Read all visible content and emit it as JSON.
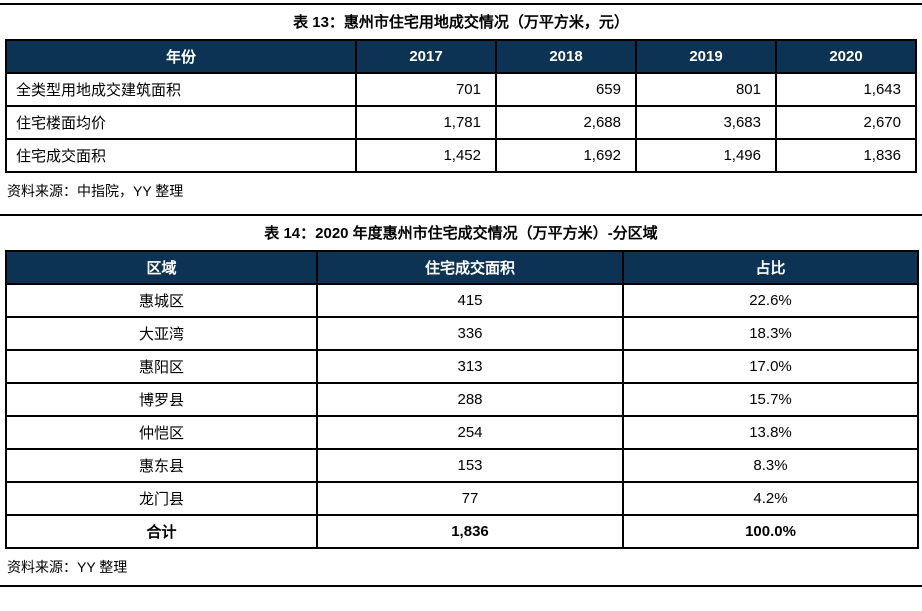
{
  "page": {
    "accent_navy": "#0C3354",
    "border_color": "#000000",
    "background": "#ffffff"
  },
  "table13": {
    "title": "表 13：惠州市住宅用地成交情况（万平方米，元）",
    "columns": [
      "年份",
      "2017",
      "2018",
      "2019",
      "2020"
    ],
    "rows": [
      {
        "label": "全类型用地成交建筑面积",
        "values": [
          "701",
          "659",
          "801",
          "1,643"
        ]
      },
      {
        "label": "住宅楼面均价",
        "values": [
          "1,781",
          "2,688",
          "3,683",
          "2,670"
        ]
      },
      {
        "label": "住宅成交面积",
        "values": [
          "1,452",
          "1,692",
          "1,496",
          "1,836"
        ]
      }
    ],
    "source": "资料来源：中指院，YY 整理"
  },
  "table14": {
    "title": "表 14：2020 年度惠州市住宅成交情况（万平方米）-分区域",
    "columns": [
      "区域",
      "住宅成交面积",
      "占比"
    ],
    "rows": [
      {
        "region": "惠城区",
        "area": "415",
        "share": "22.6%"
      },
      {
        "region": "大亚湾",
        "area": "336",
        "share": "18.3%"
      },
      {
        "region": "惠阳区",
        "area": "313",
        "share": "17.0%"
      },
      {
        "region": "博罗县",
        "area": "288",
        "share": "15.7%"
      },
      {
        "region": "仲恺区",
        "area": "254",
        "share": "13.8%"
      },
      {
        "region": "惠东县",
        "area": "153",
        "share": "8.3%"
      },
      {
        "region": "龙门县",
        "area": "77",
        "share": "4.2%"
      }
    ],
    "total_row": {
      "region": "合计",
      "area": "1,836",
      "share": "100.0%"
    },
    "source": "资料来源：YY 整理"
  }
}
